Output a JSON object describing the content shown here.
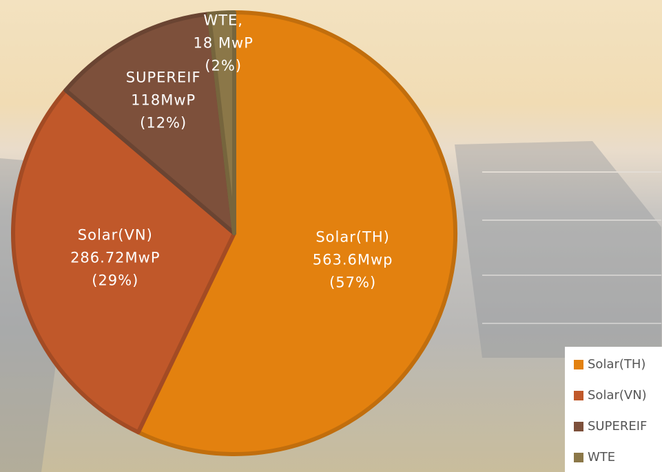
{
  "chart_data": {
    "type": "pie",
    "categories": [
      "Solar(TH)",
      "Solar(VN)",
      "SUPEREIF",
      "WTE"
    ],
    "values": [
      563.6,
      286.72,
      118,
      18
    ],
    "colors": [
      "#e3810f",
      "#c0582a",
      "#7d503b",
      "#8b7748"
    ],
    "slice_names": [
      "Solar(TH)",
      "Solar(VN)",
      "SUPEREIF",
      "WTE,"
    ],
    "value_labels": [
      "563.6Mwp",
      "286.72MwP",
      "118MwP",
      "18 MwP"
    ],
    "percent_labels": [
      "(57%)",
      "(29%)",
      "(12%)",
      "(2%)"
    ],
    "legend": "bottom-right"
  }
}
